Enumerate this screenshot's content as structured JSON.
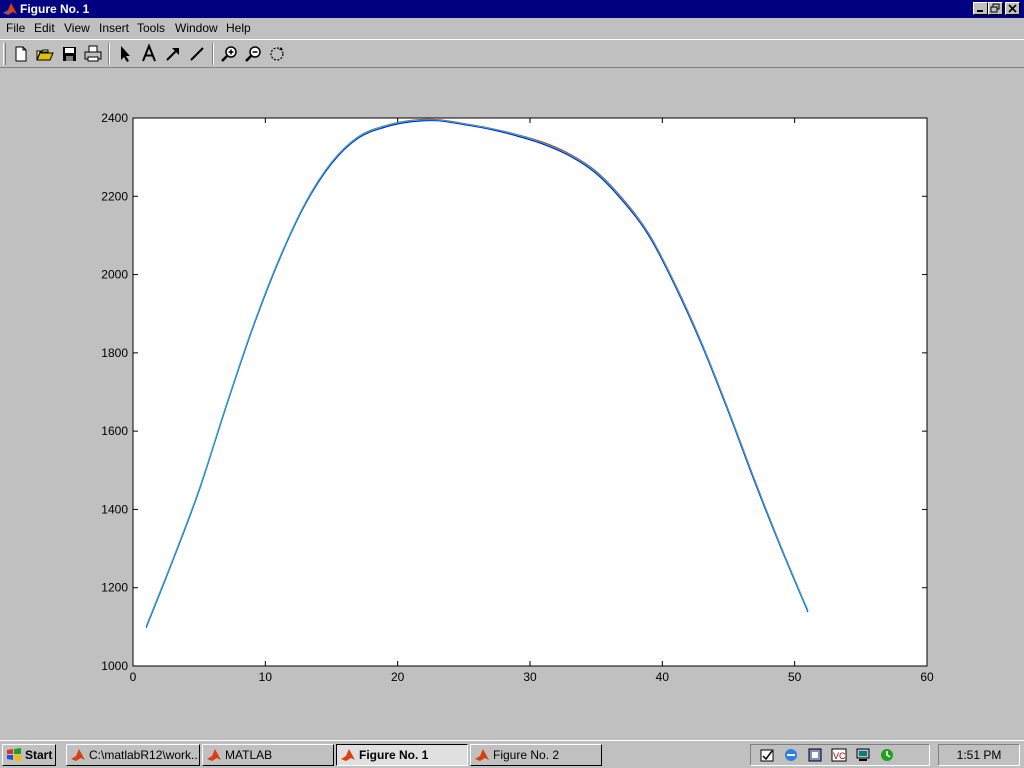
{
  "window": {
    "title": "Figure No. 1",
    "controls": [
      "minimize",
      "restore",
      "close"
    ]
  },
  "menubar": {
    "items": [
      {
        "label": "File"
      },
      {
        "label": "Edit"
      },
      {
        "label": "View"
      },
      {
        "label": "Insert"
      },
      {
        "label": "Tools"
      },
      {
        "label": "Window"
      },
      {
        "label": "Help"
      }
    ]
  },
  "toolbar": {
    "buttons": [
      "new-figure-icon",
      "open-file-icon",
      "save-icon",
      "print-icon",
      "edit-plot-arrow-icon",
      "insert-text-icon",
      "insert-arrow-icon",
      "insert-line-icon",
      "zoom-in-icon",
      "zoom-out-icon",
      "rotate-3d-icon"
    ]
  },
  "chart_data": {
    "type": "line",
    "title": "",
    "xlabel": "",
    "ylabel": "",
    "xlim": [
      0,
      60
    ],
    "ylim": [
      1000,
      2400
    ],
    "xticks": [
      "0",
      "10",
      "20",
      "30",
      "40",
      "50",
      "60"
    ],
    "yticks": [
      "1000",
      "1200",
      "1400",
      "1600",
      "1800",
      "2000",
      "2200",
      "2400"
    ],
    "grid": false,
    "legend": "none",
    "series": [
      {
        "color": "#00ff00",
        "x": [
          1,
          3,
          5,
          7,
          9,
          11,
          13,
          15,
          17,
          19,
          21,
          23,
          25,
          27,
          29,
          31,
          33,
          35,
          37,
          39,
          41,
          43,
          45,
          47,
          49,
          51
        ],
        "y": [
          1100,
          1270,
          1450,
          1660,
          1860,
          2035,
          2180,
          2285,
          2350,
          2378,
          2392,
          2395,
          2385,
          2373,
          2356,
          2335,
          2305,
          2260,
          2190,
          2100,
          1970,
          1820,
          1650,
          1470,
          1300,
          1140
        ]
      },
      {
        "color": "#ff0000",
        "x": [
          1,
          3,
          5,
          7,
          9,
          11,
          13,
          15,
          17,
          19,
          21,
          23,
          25,
          27,
          29,
          31,
          33,
          35,
          37,
          39,
          41,
          43,
          45,
          47,
          49,
          51
        ],
        "y": [
          1102,
          1272,
          1452,
          1662,
          1862,
          2037,
          2182,
          2287,
          2352,
          2380,
          2394,
          2396,
          2386,
          2374,
          2358,
          2338,
          2308,
          2264,
          2194,
          2104,
          1974,
          1824,
          1654,
          1474,
          1303,
          1142
        ]
      },
      {
        "color": "#0000ff",
        "x": [
          1,
          3,
          5,
          7,
          9,
          11,
          13,
          15,
          17,
          19,
          21,
          23,
          25,
          27,
          29,
          31,
          33,
          35,
          37,
          39,
          41,
          43,
          45,
          47,
          49,
          51
        ],
        "y": [
          1098,
          1268,
          1448,
          1658,
          1858,
          2033,
          2178,
          2283,
          2348,
          2376,
          2390,
          2393,
          2383,
          2371,
          2354,
          2333,
          2303,
          2258,
          2188,
          2098,
          1968,
          1818,
          1648,
          1468,
          1298,
          1138
        ]
      },
      {
        "color": "#00cccc",
        "x": [
          1,
          3,
          5,
          7,
          9,
          11,
          13,
          15,
          17,
          19,
          21,
          23,
          25,
          27,
          29,
          31,
          33,
          35,
          37,
          39,
          41,
          43,
          45,
          47,
          49,
          51
        ],
        "y": [
          1101,
          1271,
          1451,
          1661,
          1861,
          2036,
          2181,
          2286,
          2351,
          2379,
          2393,
          2395,
          2385,
          2373,
          2357,
          2336,
          2306,
          2262,
          2192,
          2102,
          1972,
          1822,
          1652,
          1472,
          1301,
          1141
        ]
      }
    ]
  },
  "taskbar": {
    "start_label": "Start",
    "tasks": [
      {
        "label": "C:\\matlabR12\\work..."
      },
      {
        "label": "MATLAB"
      },
      {
        "label": "Figure No. 1",
        "active": true
      },
      {
        "label": "Figure No. 2"
      }
    ],
    "tray_icons": [
      "agent-icon",
      "internet-explorer-icon",
      "network-icon",
      "vc-icon",
      "monitor-icon",
      "scheduler-icon"
    ],
    "clock": "1:51 PM"
  }
}
